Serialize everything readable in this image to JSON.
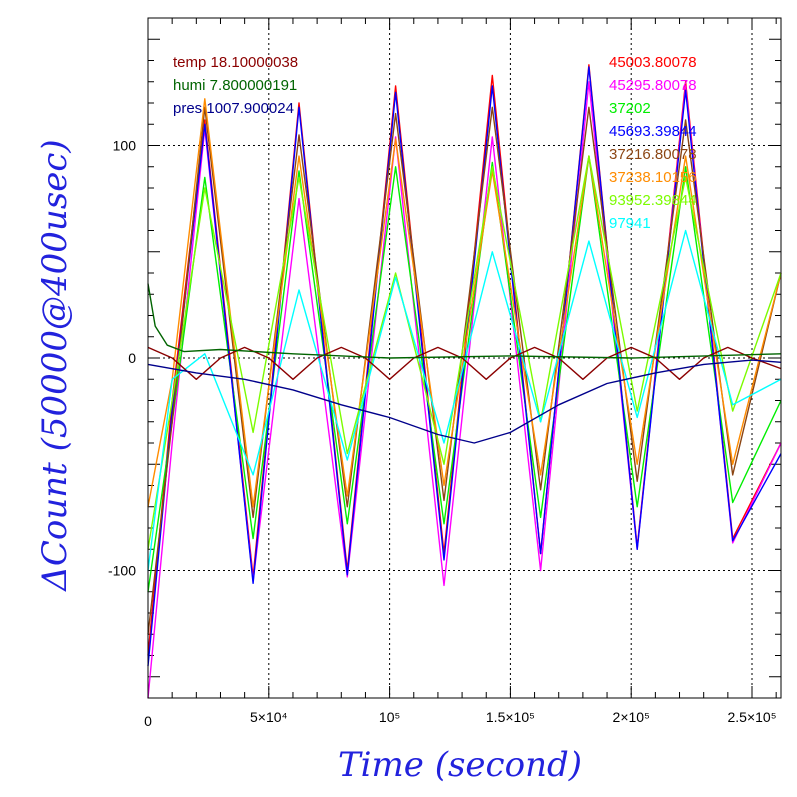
{
  "chart_data": {
    "type": "line",
    "xlabel": "Time (second)",
    "ylabel": "ΔCount (50000@400usec)",
    "xlim": [
      0,
      262000
    ],
    "ylim": [
      -160,
      160
    ],
    "x_ticks": [
      {
        "value": 0,
        "label": "0"
      },
      {
        "value": 50000,
        "label": "5×10⁴"
      },
      {
        "value": 100000,
        "label": "10⁵"
      },
      {
        "value": 150000,
        "label": "1.5×10⁵"
      },
      {
        "value": 200000,
        "label": "2×10⁵"
      },
      {
        "value": 250000,
        "label": "2.5×10⁵"
      }
    ],
    "y_ticks": [
      {
        "value": -100,
        "label": "-100"
      },
      {
        "value": 0,
        "label": "0"
      },
      {
        "value": 100,
        "label": "100"
      }
    ],
    "grid": true,
    "legend_left": [
      {
        "name": "temp",
        "value": "18.10000038",
        "color": "#8b0000"
      },
      {
        "name": "humi",
        "value": "7.800000191",
        "color": "#006400"
      },
      {
        "name": "pres",
        "value": "1007.900024",
        "color": "#00008b"
      }
    ],
    "legend_right": [
      {
        "label": "45003.80078",
        "color": "#ff0000"
      },
      {
        "label": "45295.80078",
        "color": "#ff00ff"
      },
      {
        "label": "37202",
        "color": "#00ee00"
      },
      {
        "label": "45693.39844",
        "color": "#0000ff"
      },
      {
        "label": "37216.80078",
        "color": "#8b4513"
      },
      {
        "label": "37238.10156",
        "color": "#ff8c00"
      },
      {
        "label": "93952.39844",
        "color": "#7cfc00"
      },
      {
        "label": "97941",
        "color": "#00ffff"
      }
    ],
    "series": [
      {
        "color": "#ff0000",
        "x": [
          0,
          10000,
          23500,
          43500,
          62500,
          82500,
          102500,
          122500,
          142500,
          162500,
          182500,
          202500,
          222500,
          242000,
          262000
        ],
        "y": [
          -140,
          -20,
          112,
          -103,
          120,
          -100,
          128,
          -92,
          133,
          -92,
          138,
          -89,
          130,
          -85,
          -40
        ]
      },
      {
        "color": "#ff00ff",
        "x": [
          0,
          10000,
          23500,
          43500,
          62500,
          82500,
          102500,
          122500,
          142500,
          162500,
          182500,
          202500,
          222500,
          242000,
          262000
        ],
        "y": [
          -160,
          -40,
          108,
          -105,
          75,
          -103,
          104,
          -107,
          104,
          -100,
          130,
          -90,
          128,
          -87,
          -40
        ]
      },
      {
        "color": "#00ee00",
        "x": [
          0,
          10000,
          23500,
          43500,
          62500,
          82500,
          102500,
          122500,
          142500,
          162500,
          182500,
          202500,
          222500,
          242000,
          262000
        ],
        "y": [
          -110,
          -30,
          85,
          -85,
          88,
          -78,
          90,
          -78,
          92,
          -75,
          95,
          -70,
          90,
          -68,
          -20
        ]
      },
      {
        "color": "#0000ff",
        "x": [
          0,
          10000,
          23500,
          43500,
          62500,
          82500,
          102500,
          122500,
          142500,
          162500,
          182500,
          202500,
          222500,
          242000,
          262000
        ],
        "y": [
          -145,
          -25,
          110,
          -106,
          118,
          -102,
          125,
          -95,
          128,
          -92,
          137,
          -90,
          126,
          -86,
          -45
        ]
      },
      {
        "color": "#8b4513",
        "x": [
          0,
          10000,
          23500,
          43500,
          62500,
          82500,
          102500,
          122500,
          142500,
          162500,
          182500,
          202500,
          222500,
          242000,
          262000
        ],
        "y": [
          -130,
          -30,
          118,
          -75,
          105,
          -70,
          115,
          -67,
          118,
          -62,
          118,
          -58,
          112,
          -55,
          40
        ]
      },
      {
        "color": "#ff8c00",
        "x": [
          0,
          10000,
          23500,
          43500,
          62500,
          82500,
          102500,
          122500,
          142500,
          162500,
          182500,
          202500,
          222500,
          242000,
          262000
        ],
        "y": [
          -70,
          -10,
          122,
          -70,
          95,
          -65,
          103,
          -60,
          88,
          -55,
          95,
          -50,
          95,
          -50,
          40
        ]
      },
      {
        "color": "#7cfc00",
        "x": [
          0,
          10000,
          23500,
          43500,
          62500,
          82500,
          102500,
          122500,
          142500,
          162500,
          182500,
          202500,
          222500,
          242000,
          262000
        ],
        "y": [
          -90,
          -20,
          80,
          -35,
          85,
          -45,
          40,
          -50,
          90,
          -30,
          95,
          -25,
          85,
          -25,
          40
        ]
      },
      {
        "color": "#00ffff",
        "x": [
          0,
          10000,
          23500,
          43500,
          62500,
          82500,
          102500,
          122500,
          142500,
          162500,
          182500,
          202500,
          222500,
          242000,
          262000
        ],
        "y": [
          -100,
          -10,
          2,
          -55,
          32,
          -48,
          38,
          -40,
          50,
          -30,
          55,
          -28,
          60,
          -22,
          -10
        ]
      },
      {
        "color": "#8b0000",
        "x": [
          0,
          10000,
          20000,
          30000,
          40000,
          50000,
          60000,
          70000,
          80000,
          90000,
          100000,
          110000,
          120000,
          130000,
          140000,
          150000,
          160000,
          170000,
          180000,
          190000,
          200000,
          210000,
          220000,
          230000,
          240000,
          250000,
          262000
        ],
        "y": [
          5,
          0,
          -10,
          0,
          5,
          0,
          -10,
          0,
          5,
          0,
          -10,
          0,
          5,
          0,
          -10,
          0,
          5,
          0,
          -10,
          0,
          5,
          0,
          -10,
          0,
          5,
          0,
          -5
        ]
      },
      {
        "color": "#006400",
        "x": [
          0,
          3000,
          8000,
          15000,
          30000,
          60000,
          100000,
          150000,
          200000,
          262000
        ],
        "y": [
          35,
          15,
          6,
          3,
          4,
          2,
          0,
          1,
          0,
          2
        ]
      },
      {
        "color": "#00008b",
        "x": [
          0,
          20000,
          40000,
          60000,
          80000,
          100000,
          120000,
          135000,
          150000,
          170000,
          190000,
          210000,
          230000,
          250000,
          262000
        ],
        "y": [
          -3,
          -7,
          -10,
          -15,
          -22,
          -28,
          -36,
          -40,
          -35,
          -22,
          -12,
          -7,
          -3,
          -1,
          -2
        ]
      }
    ]
  }
}
